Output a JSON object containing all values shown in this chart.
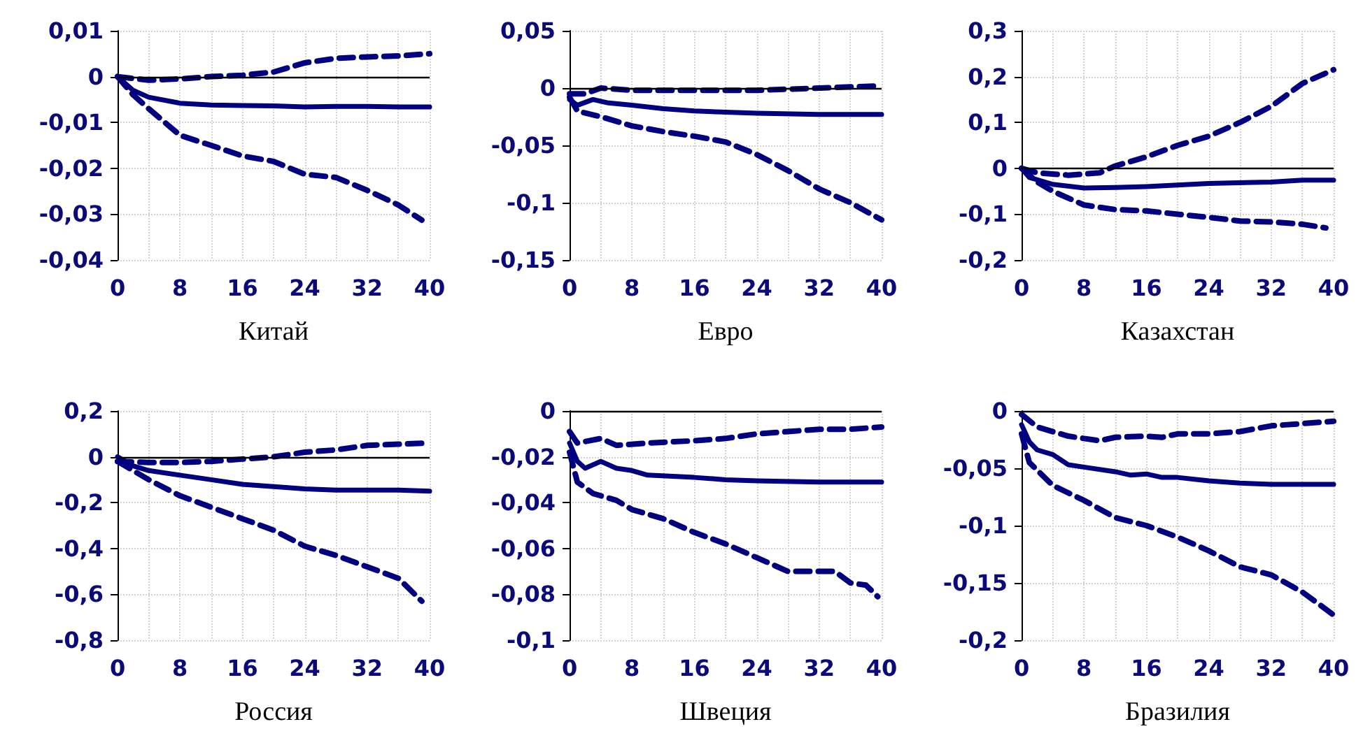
{
  "chart_data": [
    {
      "type": "line",
      "xlabel": "Китай",
      "xlim": [
        0,
        40
      ],
      "ylim": [
        -0.04,
        0.01
      ],
      "grid": true,
      "marker": "none",
      "xticks": [
        0,
        {
          "value": 4,
          "label": null
        },
        8,
        {
          "value": 12,
          "label": null
        },
        16,
        {
          "value": 20,
          "label": null
        },
        24,
        {
          "value": 28,
          "label": null
        },
        32,
        {
          "value": 36,
          "label": null
        },
        40
      ],
      "yticks": [
        {
          "value": -0.04,
          "label": "-0,04"
        },
        {
          "value": -0.03,
          "label": "-0,03"
        },
        {
          "value": -0.02,
          "label": "-0,02"
        },
        {
          "value": -0.01,
          "label": "-0,01"
        },
        {
          "value": 0,
          "label": "0"
        },
        {
          "value": 0.01,
          "label": "0,01"
        }
      ],
      "ref_lines": [
        {
          "axis": "y",
          "value": 0,
          "color": "#000000"
        }
      ],
      "series": [
        {
          "color": "#000080",
          "line_style": "solid",
          "x": [
            0,
            2,
            4,
            8,
            12,
            16,
            20,
            24,
            28,
            32,
            36,
            40
          ],
          "values": [
            0,
            -0.003,
            -0.0045,
            -0.0058,
            -0.0062,
            -0.0063,
            -0.0064,
            -0.0066,
            -0.0065,
            -0.0065,
            -0.0066,
            -0.0066
          ]
        },
        {
          "color": "#000080",
          "line_style": "dashed",
          "x": [
            0,
            4,
            8,
            12,
            16,
            20,
            24,
            28,
            32,
            36,
            40
          ],
          "values": [
            0,
            -0.0008,
            -0.0005,
            0,
            0.0003,
            0.001,
            0.003,
            0.004,
            0.0043,
            0.0045,
            0.005
          ]
        },
        {
          "color": "#000080",
          "line_style": "dashed",
          "x": [
            0,
            2,
            4,
            8,
            12,
            16,
            20,
            24,
            28,
            32,
            36,
            39
          ],
          "values": [
            0,
            -0.004,
            -0.007,
            -0.0128,
            -0.015,
            -0.0173,
            -0.0185,
            -0.0213,
            -0.022,
            -0.0248,
            -0.028,
            -0.0313
          ]
        }
      ]
    },
    {
      "type": "line",
      "xlabel": "Евро",
      "xlim": [
        0,
        40
      ],
      "ylim": [
        -0.15,
        0.05
      ],
      "grid": true,
      "marker": "none",
      "xticks": [
        0,
        {
          "value": 4,
          "label": null
        },
        8,
        {
          "value": 12,
          "label": null
        },
        16,
        {
          "value": 20,
          "label": null
        },
        24,
        {
          "value": 28,
          "label": null
        },
        32,
        {
          "value": 36,
          "label": null
        },
        40
      ],
      "yticks": [
        {
          "value": -0.15,
          "label": "-0,15"
        },
        {
          "value": -0.1,
          "label": "-0,1"
        },
        {
          "value": -0.05,
          "label": "-0,05"
        },
        {
          "value": 0,
          "label": "0"
        },
        {
          "value": 0.05,
          "label": "0,05"
        }
      ],
      "ref_lines": [
        {
          "axis": "y",
          "value": 0,
          "color": "#000000"
        }
      ],
      "series": [
        {
          "color": "#000080",
          "line_style": "solid",
          "x": [
            0,
            1,
            3,
            5,
            8,
            12,
            16,
            24,
            32,
            40
          ],
          "values": [
            -0.01,
            -0.015,
            -0.01,
            -0.013,
            -0.015,
            -0.018,
            -0.02,
            -0.022,
            -0.023,
            -0.023
          ]
        },
        {
          "color": "#000080",
          "line_style": "dashed",
          "x": [
            0,
            2,
            4,
            8,
            16,
            24,
            32,
            40
          ],
          "values": [
            -0.005,
            -0.005,
            0,
            -0.002,
            -0.002,
            -0.002,
            0,
            0.002
          ]
        },
        {
          "color": "#000080",
          "line_style": "dashed",
          "x": [
            0,
            1,
            4,
            8,
            12,
            16,
            20,
            24,
            28,
            32,
            36,
            40
          ],
          "values": [
            -0.008,
            -0.02,
            -0.025,
            -0.033,
            -0.038,
            -0.042,
            -0.047,
            -0.058,
            -0.072,
            -0.088,
            -0.1,
            -0.115
          ]
        }
      ]
    },
    {
      "type": "line",
      "xlabel": "Казахстан",
      "xlim": [
        0,
        40
      ],
      "ylim": [
        -0.2,
        0.3
      ],
      "grid": true,
      "marker": "none",
      "xticks": [
        0,
        {
          "value": 4,
          "label": null
        },
        8,
        {
          "value": 12,
          "label": null
        },
        16,
        {
          "value": 20,
          "label": null
        },
        24,
        {
          "value": 28,
          "label": null
        },
        32,
        {
          "value": 36,
          "label": null
        },
        40
      ],
      "yticks": [
        {
          "value": -0.2,
          "label": "-0,2"
        },
        {
          "value": -0.1,
          "label": "-0,1"
        },
        {
          "value": 0,
          "label": "0"
        },
        {
          "value": 0.1,
          "label": "0,1"
        },
        {
          "value": 0.2,
          "label": "0,2"
        },
        {
          "value": 0.3,
          "label": "0,3"
        }
      ],
      "ref_lines": [
        {
          "axis": "y",
          "value": 0,
          "color": "#000000"
        }
      ],
      "series": [
        {
          "color": "#000080",
          "line_style": "solid",
          "x": [
            0,
            1,
            4,
            8,
            12,
            16,
            24,
            32,
            36,
            40
          ],
          "values": [
            0,
            -0.02,
            -0.035,
            -0.043,
            -0.042,
            -0.04,
            -0.033,
            -0.03,
            -0.026,
            -0.026
          ]
        },
        {
          "color": "#000080",
          "line_style": "dashed",
          "x": [
            0,
            2,
            6,
            10,
            12,
            16,
            20,
            24,
            28,
            32,
            36,
            40
          ],
          "values": [
            0,
            -0.01,
            -0.015,
            -0.01,
            0.005,
            0.025,
            0.05,
            0.07,
            0.1,
            0.135,
            0.185,
            0.215
          ]
        },
        {
          "color": "#000080",
          "line_style": "dashed",
          "x": [
            0,
            2,
            4,
            8,
            12,
            16,
            20,
            24,
            28,
            32,
            36,
            39
          ],
          "values": [
            0,
            -0.03,
            -0.05,
            -0.08,
            -0.09,
            -0.093,
            -0.1,
            -0.107,
            -0.115,
            -0.117,
            -0.122,
            -0.13
          ]
        }
      ]
    },
    {
      "type": "line",
      "xlabel": "Россия",
      "xlim": [
        0,
        40
      ],
      "ylim": [
        -0.8,
        0.2
      ],
      "grid": true,
      "marker": "none",
      "xticks": [
        0,
        {
          "value": 4,
          "label": null
        },
        8,
        {
          "value": 12,
          "label": null
        },
        16,
        {
          "value": 20,
          "label": null
        },
        24,
        {
          "value": 28,
          "label": null
        },
        32,
        {
          "value": 36,
          "label": null
        },
        40
      ],
      "yticks": [
        {
          "value": -0.8,
          "label": "-0,8"
        },
        {
          "value": -0.6,
          "label": "-0,6"
        },
        {
          "value": -0.4,
          "label": "-0,4"
        },
        {
          "value": -0.2,
          "label": "-0,2"
        },
        {
          "value": 0,
          "label": "0"
        },
        {
          "value": 0.2,
          "label": "0,2"
        }
      ],
      "ref_lines": [
        {
          "axis": "y",
          "value": 0,
          "color": "#000000"
        }
      ],
      "series": [
        {
          "color": "#000080",
          "line_style": "solid",
          "x": [
            0,
            2,
            4,
            8,
            12,
            16,
            20,
            24,
            28,
            32,
            36,
            40
          ],
          "values": [
            0,
            -0.04,
            -0.06,
            -0.08,
            -0.1,
            -0.12,
            -0.13,
            -0.14,
            -0.145,
            -0.145,
            -0.145,
            -0.15
          ]
        },
        {
          "color": "#000080",
          "line_style": "dashed",
          "x": [
            0,
            4,
            8,
            12,
            16,
            20,
            24,
            28,
            32,
            36,
            40
          ],
          "values": [
            -0.02,
            -0.025,
            -0.025,
            -0.02,
            -0.01,
            0,
            0.02,
            0.03,
            0.05,
            0.055,
            0.06
          ]
        },
        {
          "color": "#000080",
          "line_style": "dashed",
          "x": [
            0,
            2,
            4,
            8,
            12,
            16,
            20,
            24,
            28,
            32,
            36,
            39
          ],
          "values": [
            -0.02,
            -0.06,
            -0.1,
            -0.17,
            -0.22,
            -0.27,
            -0.32,
            -0.39,
            -0.43,
            -0.48,
            -0.53,
            -0.63
          ]
        }
      ]
    },
    {
      "type": "line",
      "xlabel": "Швеция",
      "xlim": [
        0,
        40
      ],
      "ylim": [
        -0.1,
        0
      ],
      "grid": true,
      "marker": "none",
      "xticks": [
        0,
        {
          "value": 4,
          "label": null
        },
        8,
        {
          "value": 12,
          "label": null
        },
        16,
        {
          "value": 20,
          "label": null
        },
        24,
        {
          "value": 28,
          "label": null
        },
        32,
        {
          "value": 36,
          "label": null
        },
        40
      ],
      "yticks": [
        {
          "value": -0.1,
          "label": "-0,1"
        },
        {
          "value": -0.08,
          "label": "-0,08"
        },
        {
          "value": -0.06,
          "label": "-0,06"
        },
        {
          "value": -0.04,
          "label": "-0,04"
        },
        {
          "value": -0.02,
          "label": "-0,02"
        },
        {
          "value": 0,
          "label": "0"
        }
      ],
      "ref_lines": [
        {
          "axis": "y",
          "value": 0,
          "color": "#000000"
        }
      ],
      "series": [
        {
          "color": "#000080",
          "line_style": "solid",
          "x": [
            0,
            1,
            2,
            4,
            6,
            8,
            10,
            16,
            20,
            24,
            32,
            40
          ],
          "values": [
            -0.014,
            -0.022,
            -0.025,
            -0.022,
            -0.025,
            -0.026,
            -0.028,
            -0.029,
            -0.03,
            -0.0305,
            -0.031,
            -0.031
          ]
        },
        {
          "color": "#000080",
          "line_style": "dashed",
          "x": [
            0,
            1,
            4,
            6,
            10,
            16,
            20,
            24,
            28,
            32,
            36,
            40
          ],
          "values": [
            -0.009,
            -0.014,
            -0.012,
            -0.015,
            -0.014,
            -0.013,
            -0.012,
            -0.01,
            -0.009,
            -0.008,
            -0.008,
            -0.007
          ]
        },
        {
          "color": "#000080",
          "line_style": "dashed",
          "x": [
            0,
            1,
            3,
            6,
            8,
            12,
            16,
            20,
            24,
            28,
            32,
            34,
            36,
            38,
            39.5
          ],
          "values": [
            -0.018,
            -0.031,
            -0.036,
            -0.039,
            -0.043,
            -0.047,
            -0.053,
            -0.058,
            -0.064,
            -0.07,
            -0.07,
            -0.07,
            -0.075,
            -0.076,
            -0.081
          ]
        }
      ]
    },
    {
      "type": "line",
      "xlabel": "Бразилия",
      "xlim": [
        0,
        40
      ],
      "ylim": [
        -0.2,
        0
      ],
      "grid": true,
      "marker": "none",
      "xticks": [
        0,
        {
          "value": 4,
          "label": null
        },
        8,
        {
          "value": 12,
          "label": null
        },
        16,
        {
          "value": 20,
          "label": null
        },
        24,
        {
          "value": 28,
          "label": null
        },
        32,
        {
          "value": 36,
          "label": null
        },
        40
      ],
      "yticks": [
        {
          "value": -0.2,
          "label": "-0,2"
        },
        {
          "value": -0.15,
          "label": "-0,15"
        },
        {
          "value": -0.1,
          "label": "-0,1"
        },
        {
          "value": -0.05,
          "label": "-0,05"
        },
        {
          "value": 0,
          "label": "0"
        }
      ],
      "ref_lines": [
        {
          "axis": "y",
          "value": 0,
          "color": "#000000"
        }
      ],
      "series": [
        {
          "color": "#000080",
          "line_style": "solid",
          "x": [
            0,
            1,
            2,
            4,
            6,
            8,
            12,
            14,
            16,
            18,
            20,
            24,
            28,
            32,
            36,
            40
          ],
          "values": [
            -0.012,
            -0.027,
            -0.034,
            -0.038,
            -0.047,
            -0.049,
            -0.053,
            -0.056,
            -0.055,
            -0.058,
            -0.058,
            -0.061,
            -0.063,
            -0.064,
            -0.064,
            -0.064
          ]
        },
        {
          "color": "#000080",
          "line_style": "dashed",
          "x": [
            0,
            2,
            6,
            10,
            12,
            16,
            18,
            20,
            24,
            28,
            32,
            36,
            40
          ],
          "values": [
            -0.003,
            -0.014,
            -0.022,
            -0.026,
            -0.023,
            -0.022,
            -0.023,
            -0.02,
            -0.02,
            -0.018,
            -0.013,
            -0.011,
            -0.009
          ]
        },
        {
          "color": "#000080",
          "line_style": "dashed",
          "x": [
            0,
            1,
            4,
            8,
            12,
            16,
            20,
            24,
            28,
            32,
            36,
            40
          ],
          "values": [
            -0.02,
            -0.045,
            -0.065,
            -0.078,
            -0.093,
            -0.1,
            -0.11,
            -0.122,
            -0.136,
            -0.143,
            -0.158,
            -0.178
          ]
        }
      ]
    }
  ]
}
